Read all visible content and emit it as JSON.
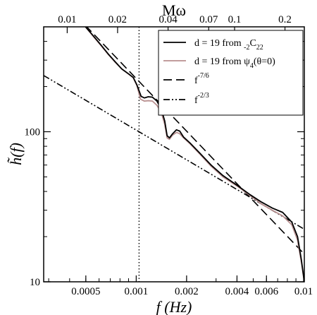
{
  "chart_data": {
    "type": "line",
    "x_scale": "log",
    "y_scale": "log",
    "xlim": [
      0.00028,
      0.0101
    ],
    "ylim": [
      10,
      500
    ],
    "xlabel": "f (Hz)",
    "ylabel": "h̃(f)",
    "top_xlabel": "Mω",
    "bottom_ticks": [
      {
        "value": 0.0005,
        "label": "0.0005"
      },
      {
        "value": 0.001,
        "label": "0.001"
      },
      {
        "value": 0.002,
        "label": "0.002"
      },
      {
        "value": 0.004,
        "label": "0.004"
      },
      {
        "value": 0.006,
        "label": "0.006"
      },
      {
        "value": 0.01,
        "label": "0.01"
      }
    ],
    "top_ticks": [
      {
        "value": 0.000387,
        "label": "0.01"
      },
      {
        "value": 0.000774,
        "label": "0.02"
      },
      {
        "value": 0.00155,
        "label": "0.04"
      },
      {
        "value": 0.00271,
        "label": "0.07"
      },
      {
        "value": 0.00387,
        "label": "0.1"
      },
      {
        "value": 0.00774,
        "label": "0.2"
      }
    ],
    "y_ticks": [
      {
        "value": 10,
        "label": "10"
      },
      {
        "value": 100,
        "label": "100"
      }
    ],
    "vertical_marker": {
      "x": 0.00104,
      "style": "dotted"
    },
    "legend_position": "top-right",
    "series": [
      {
        "name": "d = 19 from -2C22",
        "legend_main": "d = 19 from ",
        "legend_sub": "-2",
        "legend_tail": "C",
        "legend_sub2": "22",
        "color": "#000000",
        "dash": "solid",
        "points": [
          [
            0.000498,
            500
          ],
          [
            0.00055,
            440
          ],
          [
            0.00062,
            375
          ],
          [
            0.00068,
            330
          ],
          [
            0.00075,
            292
          ],
          [
            0.00082,
            262
          ],
          [
            0.0009,
            243
          ],
          [
            0.00096,
            230
          ],
          [
            0.00101,
            205
          ],
          [
            0.00107,
            172
          ],
          [
            0.00112,
            168
          ],
          [
            0.00118,
            171
          ],
          [
            0.00125,
            170
          ],
          [
            0.00133,
            160
          ],
          [
            0.00141,
            142
          ],
          [
            0.00148,
            118
          ],
          [
            0.00153,
            94
          ],
          [
            0.00158,
            91
          ],
          [
            0.00165,
            97
          ],
          [
            0.00174,
            103
          ],
          [
            0.00182,
            101
          ],
          [
            0.00192,
            92
          ],
          [
            0.0021,
            84
          ],
          [
            0.0024,
            72
          ],
          [
            0.0028,
            60
          ],
          [
            0.0033,
            51
          ],
          [
            0.004,
            44
          ],
          [
            0.0048,
            38
          ],
          [
            0.0056,
            34
          ],
          [
            0.0065,
            31
          ],
          [
            0.0075,
            29
          ],
          [
            0.0085,
            25
          ],
          [
            0.0092,
            20
          ],
          [
            0.0097,
            14
          ],
          [
            0.0101,
            10
          ]
        ]
      },
      {
        "name": "d = 19 from psi4(theta=0)",
        "legend_main": "d = 19 from  ψ",
        "legend_sub": "4",
        "legend_tail": "(θ=0)",
        "color": "#b88f8f",
        "dash": "solid",
        "points": [
          [
            0.000498,
            500
          ],
          [
            0.00055,
            436
          ],
          [
            0.00062,
            372
          ],
          [
            0.00068,
            328
          ],
          [
            0.00075,
            290
          ],
          [
            0.00082,
            262
          ],
          [
            0.0009,
            242
          ],
          [
            0.00096,
            229
          ],
          [
            0.00101,
            203
          ],
          [
            0.00106,
            165
          ],
          [
            0.00112,
            160
          ],
          [
            0.00118,
            161
          ],
          [
            0.00125,
            160
          ],
          [
            0.00133,
            150
          ],
          [
            0.00141,
            135
          ],
          [
            0.00148,
            112
          ],
          [
            0.00153,
            91
          ],
          [
            0.00158,
            89
          ],
          [
            0.00165,
            95
          ],
          [
            0.00174,
            99
          ],
          [
            0.00182,
            97
          ],
          [
            0.00192,
            91
          ],
          [
            0.0021,
            83
          ],
          [
            0.0024,
            71
          ],
          [
            0.0028,
            59
          ],
          [
            0.0033,
            50
          ],
          [
            0.004,
            43.5
          ],
          [
            0.0048,
            37.5
          ],
          [
            0.0056,
            33
          ],
          [
            0.0065,
            30
          ],
          [
            0.0075,
            27.5
          ],
          [
            0.0085,
            24
          ],
          [
            0.0092,
            19
          ],
          [
            0.0097,
            13.5
          ],
          [
            0.0101,
            10
          ]
        ]
      },
      {
        "name": "f^-7/6",
        "legend_main": "f",
        "legend_sup": "-7/6",
        "color": "#000000",
        "dash": "dashed",
        "points": [
          [
            0.000498,
            510
          ],
          [
            0.0101,
            15.3
          ]
        ]
      },
      {
        "name": "f^-2/3",
        "legend_main": "f",
        "legend_sup": "-2/3",
        "color": "#000000",
        "dash": "dashdotdot",
        "points": [
          [
            0.00028,
            237
          ],
          [
            0.0101,
            22.4
          ]
        ]
      }
    ]
  }
}
